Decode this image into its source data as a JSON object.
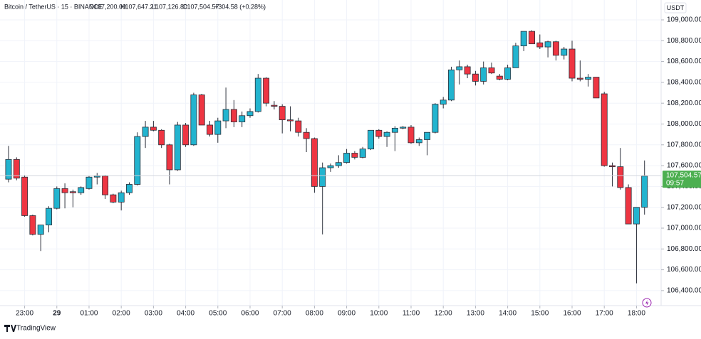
{
  "chart_data": {
    "type": "candlestick",
    "header": {
      "symbol": "Bitcoin / TetherUS · 15 · BINANCE",
      "open": "O107,200.00",
      "high": "H107,647.21",
      "low": "L107,126.80",
      "close": "C107,504.57",
      "change": "+304.58 (+0.28%)"
    },
    "currency": "USDT",
    "brand": "TradingView",
    "countdown": "09:57",
    "last_price": {
      "value": 107504.57,
      "label": "107,504.57"
    },
    "up_color": "#22b4cf",
    "down_color": "#ee3542",
    "grid": true,
    "open": [
      107470,
      107660,
      107490,
      107120,
      106940,
      107030,
      107190,
      107380,
      107350,
      107340,
      107380,
      107490,
      107500,
      107320,
      107250,
      107340,
      107420,
      107880,
      107970,
      107940,
      107800,
      107560,
      107990,
      107800,
      108280,
      107990,
      107900,
      108030,
      108140,
      108020,
      108080,
      108120,
      108440,
      108180,
      108170,
      108040,
      108030,
      107920,
      107860,
      107400,
      107580,
      107600,
      107630,
      107720,
      107680,
      107760,
      107940,
      107880,
      107920,
      107960,
      107970,
      107820,
      107850,
      107920,
      108190,
      108230,
      108520,
      108550,
      108480,
      108410,
      108540,
      108460,
      108430,
      108540,
      108750,
      108890,
      108780,
      108740,
      108790,
      108660,
      108720,
      108440,
      108430,
      108450,
      108290,
      107600,
      107590,
      107390,
      107040,
      107200
    ],
    "high": [
      107790,
      107680,
      107510,
      107130,
      107020,
      107210,
      107400,
      107430,
      107370,
      107400,
      107500,
      107530,
      107510,
      107330,
      107360,
      107440,
      107920,
      108030,
      108030,
      107950,
      107810,
      108020,
      108010,
      108300,
      108290,
      108030,
      108060,
      108350,
      108230,
      108120,
      108150,
      108480,
      108450,
      108220,
      108190,
      108170,
      108060,
      107960,
      107870,
      107630,
      107620,
      107700,
      107760,
      107740,
      107780,
      107940,
      107950,
      107930,
      107980,
      107980,
      107990,
      107870,
      107920,
      108200,
      108260,
      108550,
      108610,
      108570,
      108510,
      108600,
      108590,
      108480,
      108570,
      108780,
      108890,
      108900,
      108860,
      108800,
      108800,
      108740,
      108800,
      108610,
      108480,
      108450,
      108310,
      107630,
      107770,
      107420,
      107200,
      107650
    ],
    "low": [
      107440,
      107460,
      107110,
      106930,
      106780,
      106960,
      107180,
      107190,
      107200,
      107320,
      107370,
      107420,
      107280,
      107240,
      107170,
      107320,
      107410,
      107770,
      107930,
      107770,
      107420,
      107550,
      107780,
      107790,
      107990,
      107880,
      107820,
      107960,
      107970,
      107970,
      108060,
      108110,
      108170,
      108140,
      107910,
      107930,
      107880,
      107730,
      107340,
      106940,
      107540,
      107580,
      107620,
      107660,
      107670,
      107750,
      107860,
      107780,
      107740,
      107950,
      107810,
      107790,
      107700,
      107910,
      108150,
      108220,
      108380,
      108440,
      108370,
      108380,
      108480,
      108420,
      108420,
      108540,
      108700,
      108770,
      108720,
      108640,
      108610,
      108620,
      108410,
      108410,
      108360,
      108250,
      107590,
      107400,
      107370,
      107040,
      106470,
      107130
    ],
    "close": [
      107660,
      107480,
      107120,
      106940,
      107030,
      107190,
      107380,
      107340,
      107340,
      107390,
      107490,
      107500,
      107320,
      107250,
      107340,
      107420,
      107880,
      107970,
      107940,
      107800,
      107560,
      107990,
      107800,
      108280,
      107990,
      107900,
      108030,
      108140,
      108020,
      108080,
      108120,
      108440,
      108200,
      108170,
      108040,
      108030,
      107920,
      107860,
      107400,
      107580,
      107600,
      107630,
      107720,
      107680,
      107760,
      107940,
      107880,
      107920,
      107960,
      107970,
      107820,
      107850,
      107920,
      108190,
      108230,
      108520,
      108550,
      108480,
      108410,
      108540,
      108490,
      108430,
      108540,
      108750,
      108890,
      108770,
      108740,
      108790,
      108660,
      108720,
      108440,
      108430,
      108450,
      108250,
      107600,
      107590,
      107390,
      107040,
      107200,
      107500
    ],
    "xlim": [
      -1.06,
      81.06
    ],
    "xticks": [
      {
        "value": 2,
        "label": "23:00"
      },
      {
        "value": 6,
        "label": "29"
      },
      {
        "value": 10,
        "label": "01:00"
      },
      {
        "value": 14,
        "label": "02:00"
      },
      {
        "value": 18,
        "label": "03:00"
      },
      {
        "value": 22,
        "label": "04:00"
      },
      {
        "value": 26,
        "label": "05:00"
      },
      {
        "value": 30,
        "label": "06:00"
      },
      {
        "value": 34,
        "label": "07:00"
      },
      {
        "value": 38,
        "label": "08:00"
      },
      {
        "value": 42,
        "label": "09:00"
      },
      {
        "value": 46,
        "label": "10:00"
      },
      {
        "value": 50,
        "label": "11:00"
      },
      {
        "value": 54,
        "label": "12:00"
      },
      {
        "value": 58,
        "label": "13:00"
      },
      {
        "value": 62,
        "label": "14:00"
      },
      {
        "value": 66,
        "label": "15:00"
      },
      {
        "value": 70,
        "label": "16:00"
      },
      {
        "value": 74,
        "label": "17:00"
      },
      {
        "value": 78,
        "label": "18:00"
      }
    ],
    "ylim": [
      106256,
      109191
    ],
    "yticks": [
      {
        "value": 106400,
        "label": "106,400.00"
      },
      {
        "value": 106600,
        "label": "106,600.00"
      },
      {
        "value": 106800,
        "label": "106,800.00"
      },
      {
        "value": 107000,
        "label": "107,000.00"
      },
      {
        "value": 107200,
        "label": "107,200.00"
      },
      {
        "value": 107400,
        "label": "107,400.00"
      },
      {
        "value": 107600,
        "label": "107,600.00"
      },
      {
        "value": 107800,
        "label": "107,800.00"
      },
      {
        "value": 108000,
        "label": "108,000.00"
      },
      {
        "value": 108200,
        "label": "108,200.00"
      },
      {
        "value": 108400,
        "label": "108,400.00"
      },
      {
        "value": 108600,
        "label": "108,600.00"
      },
      {
        "value": 108800,
        "label": "108,800.00"
      },
      {
        "value": 109000,
        "label": "109,000.00"
      }
    ]
  }
}
